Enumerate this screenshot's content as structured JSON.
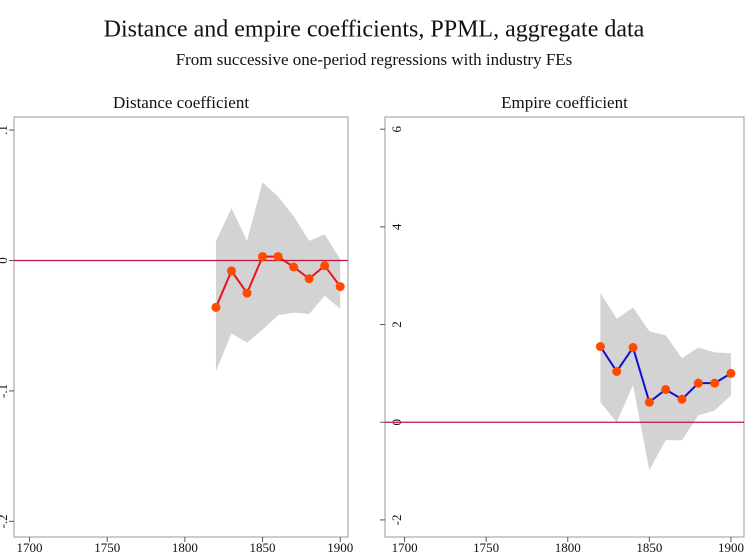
{
  "title": "Distance and empire coefficients, PPML, aggregate data",
  "subtitle": "From successive one-period regressions with industry FEs",
  "chart_data": [
    {
      "type": "line",
      "title": "Distance coefficient",
      "x": [
        1820,
        1830,
        1840,
        1850,
        1860,
        1870,
        1880,
        1890,
        1900
      ],
      "values": [
        -0.036,
        -0.008,
        -0.025,
        0.003,
        0.003,
        -0.005,
        -0.014,
        -0.004,
        -0.02
      ],
      "upper": [
        0.015,
        0.04,
        0.015,
        0.06,
        0.049,
        0.034,
        0.015,
        0.02,
        0.001
      ],
      "lower": [
        -0.085,
        -0.056,
        -0.063,
        -0.053,
        -0.042,
        -0.04,
        -0.041,
        -0.027,
        -0.037
      ],
      "color": "#e8141a",
      "marker_color": "#ff4a00",
      "band_color": "#d3d3d3",
      "reference_line": 0,
      "reference_color": "#c0143c",
      "xlim": [
        1690,
        1905
      ],
      "xticks": [
        1700,
        1750,
        1800,
        1850,
        1900
      ],
      "ylim": [
        -0.212,
        0.11
      ],
      "yticks": [
        {
          "value": -0.2,
          "label": "-.2"
        },
        {
          "value": -0.1,
          "label": "-.1"
        },
        0,
        {
          "value": 0.1,
          "label": ".1"
        }
      ]
    },
    {
      "type": "line",
      "title": "Empire coefficient",
      "x": [
        1820,
        1830,
        1840,
        1850,
        1860,
        1870,
        1880,
        1890,
        1900
      ],
      "values": [
        1.55,
        1.04,
        1.53,
        0.41,
        0.67,
        0.47,
        0.8,
        0.8,
        1.0
      ],
      "upper": [
        2.65,
        2.12,
        2.35,
        1.86,
        1.78,
        1.31,
        1.53,
        1.43,
        1.41
      ],
      "lower": [
        0.41,
        0.0,
        0.76,
        -0.98,
        -0.37,
        -0.37,
        0.14,
        0.24,
        0.55
      ],
      "color": "#1010d0",
      "marker_color": "#ff4a00",
      "band_color": "#d3d3d3",
      "reference_line": 0,
      "reference_color": "#c0143c",
      "xlim": [
        1688,
        1908
      ],
      "xticks": [
        1700,
        1750,
        1800,
        1850,
        1900
      ],
      "ylim": [
        -2.35,
        6.25
      ],
      "yticks": [
        -2,
        0,
        2,
        4,
        6
      ]
    }
  ]
}
